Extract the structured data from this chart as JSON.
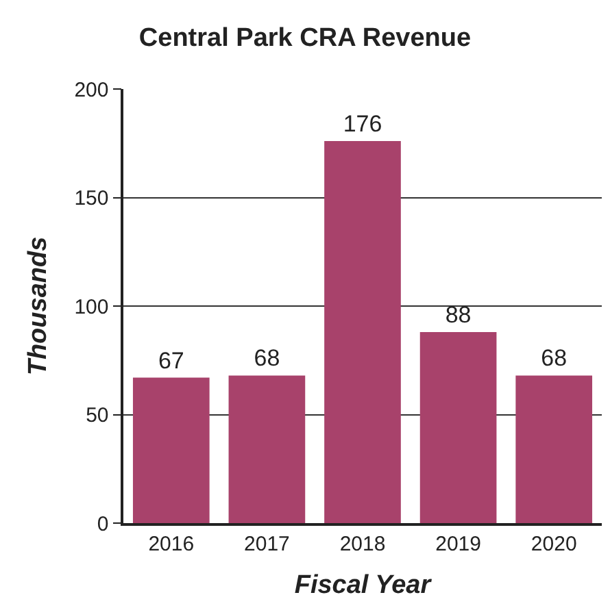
{
  "chart_data": {
    "type": "bar",
    "title": "Central Park CRA Revenue",
    "xlabel": "Fiscal Year",
    "ylabel": "Thousands",
    "categories": [
      "2016",
      "2017",
      "2018",
      "2019",
      "2020"
    ],
    "values": [
      67,
      68,
      176,
      88,
      68
    ],
    "color": "#a8426b",
    "ylim": [
      0,
      200
    ],
    "yticks": [
      0,
      50,
      100,
      150,
      200
    ],
    "grid": "y",
    "data_labels": true,
    "legend": false
  }
}
